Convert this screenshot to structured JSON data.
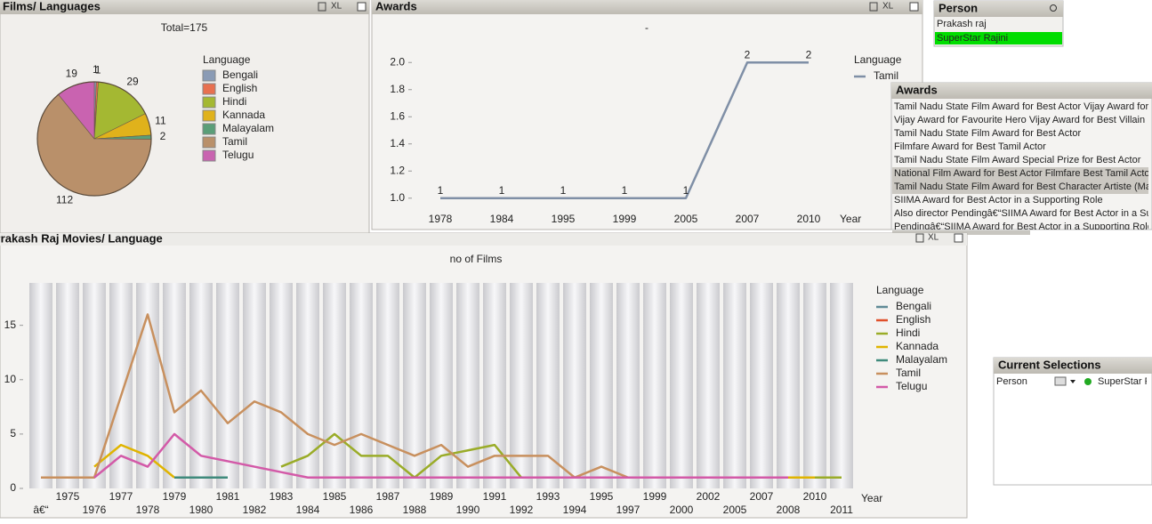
{
  "panels": {
    "pie_caption": "Films/ Languages",
    "awards_caption": "Awards",
    "films_caption": "Prakash Raj Movies/ Language",
    "export_label": "XL"
  },
  "person_list": {
    "title": "Person",
    "items": [
      "Prakash raj",
      "SuperStar Rajini"
    ],
    "selected": 1
  },
  "awards_list": {
    "title": "Awards",
    "items": [
      "Tamil Nadu State Film Award for Best Actor Vijay Award for",
      "Vijay Award for Favourite Hero Vijay Award for Best Villain N",
      "Tamil Nadu State Film Award for Best Actor",
      "Filmfare Award for Best Tamil Actor",
      "Tamil Nadu State Film Award Special Prize for Best Actor",
      "National Film Award for Best Actor Filmfare Best Tamil Actor",
      "Tamil Nadu State Film Award for Best Character Artiste (Ma",
      "SIIMA Award for Best Actor in a Supporting Role",
      "Also director Pendingâ€“SIIMA Award for Best Actor in a Su",
      "Pendingâ€“SIIMA Award for Best Actor in a Supporting Role"
    ],
    "highlighted": [
      5,
      6
    ]
  },
  "current_selections": {
    "title": "Current Selections",
    "field": "Person",
    "value": "SuperStar Rajini"
  },
  "chart_data": [
    {
      "type": "pie",
      "title": "Total=175",
      "legend_title": "Language",
      "categories": [
        "Bengali",
        "English",
        "Hindi",
        "Kannada",
        "Malayalam",
        "Tamil",
        "Telugu"
      ],
      "values": [
        1,
        1,
        29,
        11,
        2,
        112,
        19
      ],
      "colors": [
        "#8a9bb5",
        "#e8704f",
        "#a4b832",
        "#e0b21b",
        "#5a9e78",
        "#b9906a",
        "#c963b0"
      ]
    },
    {
      "type": "line",
      "title": "-",
      "legend_title": "Language",
      "x_label": "Year",
      "categories": [
        "1978",
        "1984",
        "1995",
        "1999",
        "2005",
        "2007",
        "2010"
      ],
      "series": [
        {
          "name": "Tamil",
          "color": "#7f8fa6",
          "values": [
            1,
            1,
            1,
            1,
            1,
            2,
            2
          ]
        }
      ],
      "ylim": [
        0.9,
        2.1
      ],
      "yticks": [
        {
          "value": 1,
          "label": "1.0"
        },
        {
          "value": 1.2,
          "label": "1.2"
        },
        {
          "value": 1.4,
          "label": "1.4"
        },
        {
          "value": 1.6,
          "label": "1.6"
        },
        {
          "value": 1.8,
          "label": "1.8"
        },
        {
          "value": 2,
          "label": "2.0"
        }
      ],
      "data_labels": true
    },
    {
      "type": "line",
      "title": "no of Films",
      "legend_title": "Language",
      "x_label": "Year",
      "categories": [
        "â€“",
        "1975",
        "1976",
        "1977",
        "1978",
        "1979",
        "1980",
        "1981",
        "1982",
        "1983",
        "1984",
        "1985",
        "1986",
        "1987",
        "1988",
        "1989",
        "1990",
        "1991",
        "1992",
        "1993",
        "1994",
        "1995",
        "1997",
        "1999",
        "2000",
        "2002",
        "2005",
        "2007",
        "2008",
        "2010",
        "2011"
      ],
      "series": [
        {
          "name": "Bengali",
          "color": "#5f8a96",
          "values": [
            null,
            null,
            null,
            null,
            null,
            null,
            null,
            null,
            null,
            null,
            null,
            null,
            null,
            null,
            null,
            null,
            null,
            null,
            null,
            null,
            null,
            null,
            null,
            null,
            null,
            null,
            null,
            null,
            null,
            null,
            null
          ]
        },
        {
          "name": "English",
          "color": "#e0502a",
          "values": [
            null,
            null,
            null,
            null,
            null,
            null,
            null,
            null,
            null,
            null,
            null,
            null,
            null,
            null,
            null,
            null,
            null,
            null,
            null,
            null,
            null,
            null,
            null,
            null,
            null,
            null,
            null,
            null,
            null,
            null,
            null
          ]
        },
        {
          "name": "Hindi",
          "color": "#9aac28",
          "values": [
            null,
            null,
            null,
            null,
            null,
            null,
            null,
            null,
            null,
            2,
            3,
            5,
            3,
            3,
            1,
            3,
            3.5,
            4,
            1,
            null,
            null,
            null,
            null,
            null,
            null,
            null,
            null,
            null,
            null,
            1,
            1
          ]
        },
        {
          "name": "Kannada",
          "color": "#e0b400",
          "values": [
            null,
            null,
            2,
            4,
            3,
            1,
            null,
            null,
            null,
            null,
            null,
            null,
            null,
            null,
            null,
            null,
            null,
            null,
            null,
            null,
            null,
            null,
            null,
            null,
            null,
            null,
            null,
            null,
            1,
            1,
            null
          ]
        },
        {
          "name": "Malayalam",
          "color": "#3f8a7c",
          "values": [
            null,
            null,
            null,
            null,
            null,
            1,
            1,
            1,
            null,
            null,
            null,
            null,
            null,
            null,
            null,
            null,
            null,
            null,
            null,
            null,
            null,
            null,
            null,
            null,
            null,
            null,
            null,
            null,
            null,
            null,
            null
          ]
        },
        {
          "name": "Tamil",
          "color": "#c8905e",
          "values": [
            1,
            1,
            1,
            8.5,
            16,
            7,
            9,
            6,
            8,
            7,
            5,
            4,
            5,
            4,
            3,
            4,
            2,
            3,
            3,
            3,
            1,
            2,
            1,
            1,
            1,
            1,
            1,
            1,
            1,
            null,
            null
          ]
        },
        {
          "name": "Telugu",
          "color": "#d35aa8",
          "values": [
            null,
            null,
            1,
            3,
            2,
            5,
            3,
            2.5,
            2,
            1.5,
            1,
            1,
            1,
            1,
            1,
            1,
            1,
            1,
            1,
            1,
            1,
            1,
            1,
            1,
            1,
            1,
            1,
            1,
            1,
            null,
            null
          ]
        }
      ],
      "ylim": [
        0,
        18.9
      ],
      "yticks": [
        0,
        5,
        10,
        15
      ],
      "bands": true
    }
  ]
}
